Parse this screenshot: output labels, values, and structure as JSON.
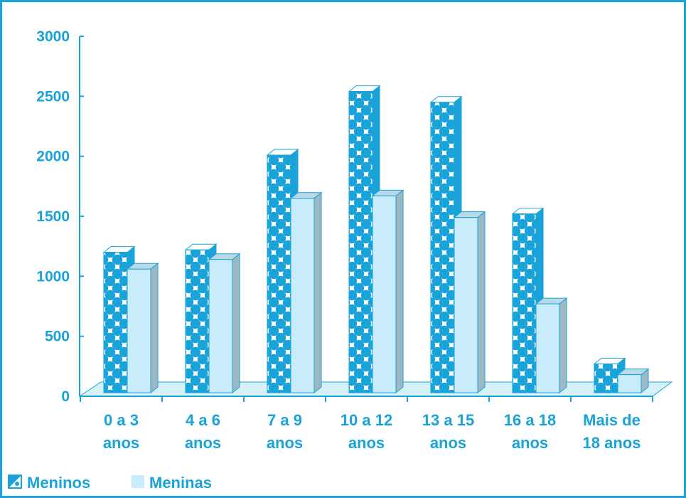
{
  "chart_data": {
    "type": "bar",
    "title": "",
    "xlabel": "",
    "ylabel": "",
    "ylim": [
      0,
      3000
    ],
    "yticks": [
      "0",
      "500",
      "1000",
      "1500",
      "2000",
      "2500",
      "3000"
    ],
    "categories": [
      [
        "0 a 3",
        "anos"
      ],
      [
        "4 a 6",
        "anos"
      ],
      [
        "7 a 9",
        "anos"
      ],
      [
        "10 a 12",
        "anos"
      ],
      [
        "13 a 15",
        "anos"
      ],
      [
        "16 a 18",
        "anos"
      ],
      [
        "Mais de",
        "18 anos"
      ]
    ],
    "series": [
      {
        "name": "Meninos",
        "values": [
          1200,
          1220,
          2010,
          2540,
          2450,
          1520,
          270
        ]
      },
      {
        "name": "Meninas",
        "values": [
          1060,
          1140,
          1650,
          1670,
          1490,
          770,
          180
        ]
      }
    ],
    "legend_position": "bottom-left",
    "grid": false
  },
  "colors": {
    "frame": "#1aa3d8",
    "text": "#1aa3d8",
    "meninos_pattern_fg": "#1aa3d8",
    "meninos_pattern_bg": "#ffffff",
    "meninas_fill": "#c9ecfa",
    "floor": "#d7f1fb"
  }
}
